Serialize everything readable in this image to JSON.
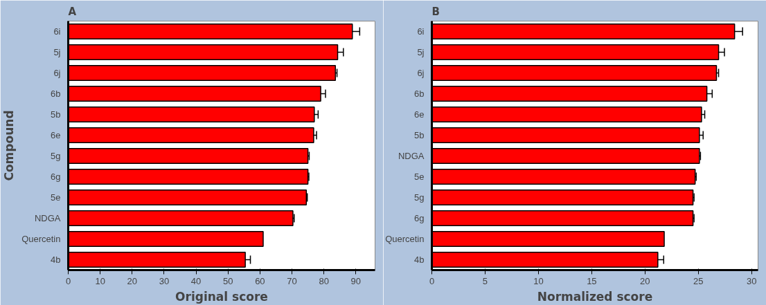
{
  "chart_data": [
    {
      "type": "bar",
      "orientation": "horizontal",
      "title": "A",
      "xlabel": "Original score",
      "ylabel": "Compound",
      "categories": [
        "6i",
        "5j",
        "6j",
        "6b",
        "5b",
        "6e",
        "5g",
        "6g",
        "5e",
        "NDGA",
        "Quercetin",
        "4b"
      ],
      "values": [
        88.9,
        84.3,
        83.6,
        79.0,
        77.0,
        76.8,
        75.0,
        75.0,
        74.5,
        70.3,
        61.0,
        55.4
      ],
      "errors": [
        2.3,
        1.8,
        0.5,
        1.5,
        1.2,
        0.9,
        0.4,
        0.3,
        0.3,
        0.4,
        null,
        1.6
      ],
      "color": "#ff0000",
      "xlim": [
        0,
        96
      ],
      "xticks": [
        0,
        10,
        20,
        30,
        40,
        50,
        60,
        70,
        80,
        90
      ],
      "grid": false
    },
    {
      "type": "bar",
      "orientation": "horizontal",
      "title": "B",
      "xlabel": "Normalized score",
      "categories": [
        "6i",
        "5j",
        "6j",
        "6b",
        "6e",
        "5b",
        "NDGA",
        "5e",
        "5g",
        "6g",
        "Quercetin",
        "4b"
      ],
      "values": [
        28.4,
        26.9,
        26.7,
        25.8,
        25.3,
        25.1,
        25.1,
        24.7,
        24.5,
        24.5,
        21.8,
        21.2
      ],
      "errors": [
        0.75,
        0.55,
        0.2,
        0.5,
        0.3,
        0.35,
        0.1,
        0.1,
        0.1,
        0.1,
        null,
        0.55
      ],
      "color": "#ff0000",
      "xlim": [
        0,
        30.6
      ],
      "xticks": [
        0,
        5,
        10,
        15,
        20,
        25,
        30
      ],
      "grid": false
    }
  ]
}
